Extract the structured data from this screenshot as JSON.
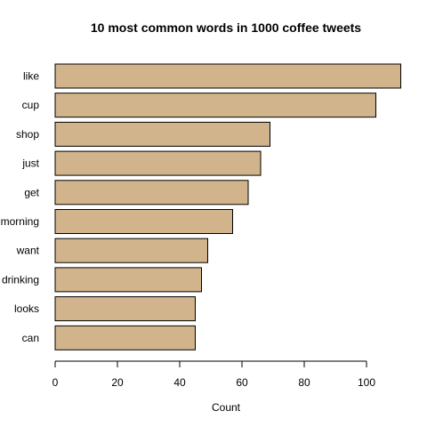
{
  "chart_data": {
    "type": "bar",
    "orientation": "horizontal",
    "title": "10 most common words in 1000 coffee tweets",
    "xlabel": "Count",
    "ylabel": "",
    "categories": [
      "like",
      "cup",
      "shop",
      "just",
      "get",
      "morning",
      "want",
      "drinking",
      "looks",
      "can"
    ],
    "values": [
      111,
      103,
      69,
      66,
      62,
      57,
      49,
      47,
      45,
      45
    ],
    "xlim": [
      0,
      112
    ],
    "x_ticks": [
      0,
      20,
      40,
      60,
      80,
      100
    ],
    "grid": false,
    "legend": "none",
    "bar_color": "#d2b48c",
    "bar_border_color": "#000000"
  }
}
